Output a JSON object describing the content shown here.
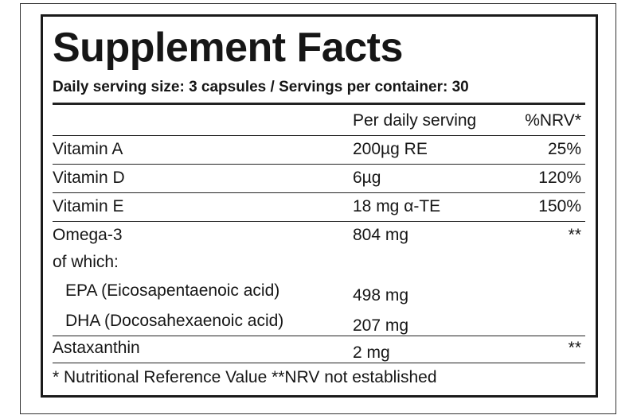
{
  "title": "Supplement Facts",
  "serving": "Daily serving size: 3 capsules / Servings per container: 30",
  "table": {
    "header": {
      "amount": "Per daily serving",
      "nrv": "%NRV*"
    },
    "rows": [
      {
        "name": "Vitamin A",
        "amount": "200µg RE",
        "nrv": "25%"
      },
      {
        "name": "Vitamin D",
        "amount": "6µg",
        "nrv": "120%"
      },
      {
        "name": "Vitamin E",
        "amount": "18 mg α-TE",
        "nrv": "150%"
      },
      {
        "name": "Omega-3",
        "amount": "804 mg",
        "nrv": "**"
      },
      {
        "name": "of which:"
      },
      {
        "name": "EPA (Eicosapentaenoic acid)",
        "amount": "498 mg"
      },
      {
        "name": "DHA (Docosahexaenoic acid)",
        "amount": "207 mg"
      },
      {
        "name": "Astaxanthin",
        "amount": "2 mg",
        "nrv": "**"
      }
    ]
  },
  "footnote": "* Nutritional Reference Value  **NRV not established"
}
